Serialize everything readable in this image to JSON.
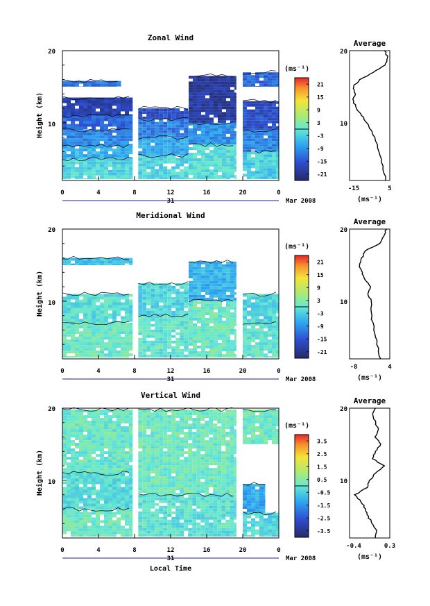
{
  "x_axis": {
    "ticks": [
      "0",
      "4",
      "8",
      "12",
      "16",
      "20",
      "0"
    ],
    "day_label": "31",
    "month_label": "Mar 2008",
    "xlabel": "Local Time"
  },
  "avg_unit": "(ms⁻¹)",
  "cb_unit": "(ms⁻¹)",
  "chart_data": [
    {
      "id": "zonal",
      "type": "heatmap",
      "title": "Zonal Wind",
      "ylabel": "Height (km)",
      "ylim": [
        2,
        20
      ],
      "yticks": [
        "20",
        "10"
      ],
      "xlim": [
        0,
        24
      ],
      "colorbar": {
        "ticks": [
          "21",
          "15",
          "9",
          "3",
          "-3",
          "-9",
          "-15",
          "-21"
        ],
        "range": [
          -24,
          24
        ]
      },
      "gaps_hours": [
        [
          7.8,
          8.4
        ],
        [
          19.3,
          20.0
        ]
      ],
      "regions": [
        {
          "x": [
            0,
            7.8
          ],
          "y": [
            2.2,
            5.0
          ],
          "v": -2
        },
        {
          "x": [
            0,
            7.8
          ],
          "y": [
            5.0,
            6.8
          ],
          "v": -6
        },
        {
          "x": [
            0,
            7.8
          ],
          "y": [
            6.8,
            9.0
          ],
          "v": -10
        },
        {
          "x": [
            0,
            7.8
          ],
          "y": [
            9.0,
            11.0
          ],
          "v": -13
        },
        {
          "x": [
            0,
            7.8
          ],
          "y": [
            11.0,
            13.5
          ],
          "v": -18
        },
        {
          "x": [
            0,
            6.5
          ],
          "y": [
            15.0,
            15.8
          ],
          "v": -12
        },
        {
          "x": [
            8.4,
            14.0
          ],
          "y": [
            2.2,
            5.5
          ],
          "v": -2
        },
        {
          "x": [
            8.4,
            14.0
          ],
          "y": [
            5.5,
            8.0
          ],
          "v": -7
        },
        {
          "x": [
            8.4,
            14.0
          ],
          "y": [
            8.0,
            10.5
          ],
          "v": -11
        },
        {
          "x": [
            8.4,
            14.0
          ],
          "y": [
            10.5,
            12.0
          ],
          "v": -16
        },
        {
          "x": [
            14.0,
            19.3
          ],
          "y": [
            2.2,
            7.0
          ],
          "v": -1
        },
        {
          "x": [
            14.0,
            19.3
          ],
          "y": [
            7.0,
            10.0
          ],
          "v": -9
        },
        {
          "x": [
            14.0,
            19.3
          ],
          "y": [
            10.0,
            16.5
          ],
          "v": -20
        },
        {
          "x": [
            20.0,
            24.0
          ],
          "y": [
            2.2,
            6.0
          ],
          "v": -3
        },
        {
          "x": [
            20.0,
            24.0
          ],
          "y": [
            6.0,
            9.0
          ],
          "v": -10
        },
        {
          "x": [
            20.0,
            24.0
          ],
          "y": [
            9.0,
            13.0
          ],
          "v": -16
        },
        {
          "x": [
            20.0,
            24.0
          ],
          "y": [
            15.0,
            17.0
          ],
          "v": -13
        }
      ],
      "avg": {
        "xlim": [
          -18,
          5
        ],
        "xticks": [
          "-15",
          "5"
        ],
        "yticks": [
          "20",
          "10"
        ],
        "h": [
          2,
          4,
          6,
          8,
          9,
          10,
          11,
          12,
          13,
          14,
          15,
          16,
          17,
          18,
          19,
          20
        ],
        "v": [
          3,
          1,
          -1,
          -4,
          -6,
          -8,
          -11,
          -14,
          -16,
          -15,
          -16,
          -12,
          -4,
          2,
          4,
          2
        ]
      }
    },
    {
      "id": "meridional",
      "type": "heatmap",
      "title": "Meridional Wind",
      "ylabel": "Height (km)",
      "ylim": [
        2,
        20
      ],
      "yticks": [
        "20",
        "10"
      ],
      "xlim": [
        0,
        24
      ],
      "colorbar": {
        "ticks": [
          "21",
          "15",
          "9",
          "3",
          "-3",
          "-9",
          "-15",
          "-21"
        ],
        "range": [
          -24,
          24
        ]
      },
      "gaps_hours": [
        [
          7.8,
          8.4
        ],
        [
          19.3,
          20.0
        ]
      ],
      "regions": [
        {
          "x": [
            0,
            7.8
          ],
          "y": [
            2.2,
            7.0
          ],
          "v": 1
        },
        {
          "x": [
            0,
            7.8
          ],
          "y": [
            7.0,
            11.0
          ],
          "v": -1
        },
        {
          "x": [
            0,
            7.8
          ],
          "y": [
            15.0,
            16.0
          ],
          "v": -4
        },
        {
          "x": [
            8.4,
            14.0
          ],
          "y": [
            2.2,
            8.0
          ],
          "v": 0
        },
        {
          "x": [
            8.4,
            14.0
          ],
          "y": [
            8.0,
            12.5
          ],
          "v": -2
        },
        {
          "x": [
            14.0,
            19.3
          ],
          "y": [
            2.2,
            10.0
          ],
          "v": 1
        },
        {
          "x": [
            14.0,
            19.3
          ],
          "y": [
            10.0,
            15.5
          ],
          "v": -6
        },
        {
          "x": [
            20.0,
            24.0
          ],
          "y": [
            2.2,
            7.0
          ],
          "v": 0
        },
        {
          "x": [
            20.0,
            24.0
          ],
          "y": [
            7.0,
            11.0
          ],
          "v": -2
        }
      ],
      "avg": {
        "xlim": [
          -8,
          5
        ],
        "xticks": [
          "-8",
          "4"
        ],
        "yticks": [
          "20",
          "10"
        ],
        "h": [
          2,
          4,
          6,
          8,
          10,
          11,
          12,
          13,
          14,
          15,
          16,
          17,
          18,
          19,
          20
        ],
        "v": [
          2,
          1,
          0,
          -1,
          -1,
          -2,
          -1,
          -3,
          -4,
          -5,
          -4,
          -3,
          2,
          3,
          4
        ]
      }
    },
    {
      "id": "vertical",
      "type": "heatmap",
      "title": "Vertical Wind",
      "ylabel": "Height (km)",
      "ylim": [
        2,
        20
      ],
      "yticks": [
        "20",
        "10"
      ],
      "xlim": [
        0,
        24
      ],
      "colorbar": {
        "ticks": [
          "3.5",
          "2.5",
          "1.5",
          "0.5",
          "-0.5",
          "-1.5",
          "-2.5",
          "-3.5"
        ],
        "range": [
          -4,
          4
        ]
      },
      "gaps_hours": [
        [
          7.8,
          8.4
        ],
        [
          19.3,
          20.0
        ]
      ],
      "regions": [
        {
          "x": [
            0,
            7.8
          ],
          "y": [
            2.2,
            6.0
          ],
          "v": 0.2
        },
        {
          "x": [
            0,
            7.8
          ],
          "y": [
            6.0,
            11.0
          ],
          "v": -0.2
        },
        {
          "x": [
            0,
            7.8
          ],
          "y": [
            11.0,
            19.8
          ],
          "v": 0.1
        },
        {
          "x": [
            8.4,
            19.3
          ],
          "y": [
            2.2,
            8.0
          ],
          "v": -0.1
        },
        {
          "x": [
            8.4,
            19.3
          ],
          "y": [
            8.0,
            19.8
          ],
          "v": 0.2
        },
        {
          "x": [
            20.0,
            22.5
          ],
          "y": [
            5.5,
            9.5
          ],
          "v": -1.2
        },
        {
          "x": [
            20.0,
            24.0
          ],
          "y": [
            2.2,
            5.5
          ],
          "v": -0.3
        },
        {
          "x": [
            20.0,
            24.0
          ],
          "y": [
            15.0,
            19.8
          ],
          "v": 0.2
        }
      ],
      "avg": {
        "xlim": [
          -0.4,
          0.3
        ],
        "xticks": [
          "-0.4",
          "0.3"
        ],
        "yticks": [
          "20",
          "10"
        ],
        "h": [
          2,
          3,
          4,
          5,
          6,
          7,
          8,
          9,
          10,
          11,
          12,
          13,
          14,
          15,
          16,
          17,
          18,
          19,
          20
        ],
        "v": [
          0.05,
          0.08,
          0.0,
          -0.08,
          -0.12,
          -0.2,
          -0.3,
          -0.1,
          -0.05,
          0.05,
          0.2,
          0.0,
          0.05,
          0.15,
          0.05,
          0.1,
          0.05,
          0.0,
          0.05
        ]
      }
    }
  ]
}
